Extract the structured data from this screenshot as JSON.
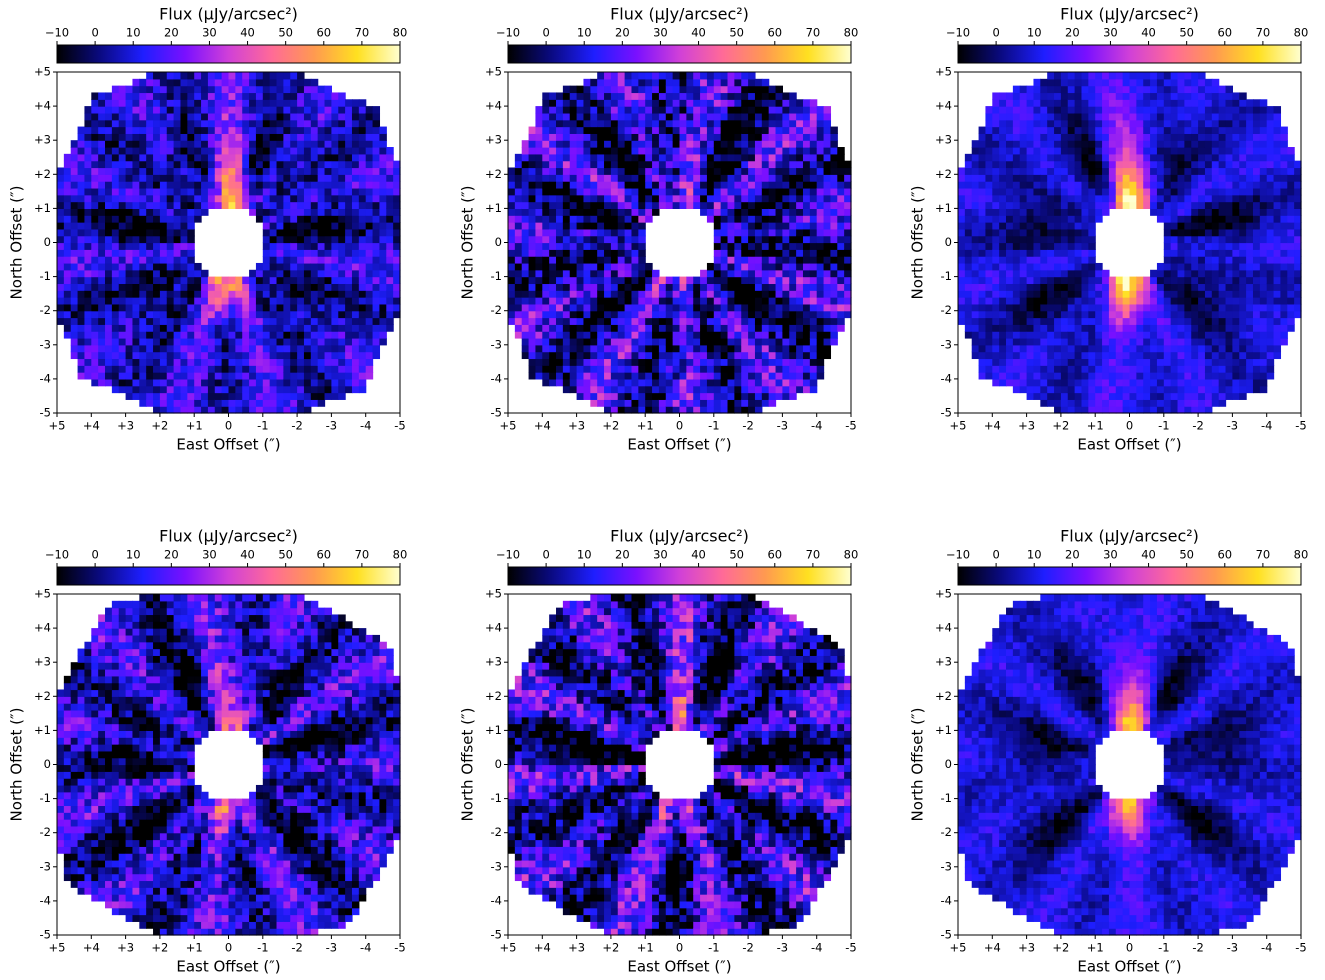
{
  "chart_data": [
    {
      "type": "heatmap",
      "colorbar_label": "Flux (μJy/arcsec²)",
      "clim": [
        -10,
        80
      ],
      "colorbar_ticks": [
        {
          "value": -10,
          "label": "−10"
        },
        0,
        10,
        20,
        30,
        40,
        50,
        60,
        70,
        80
      ],
      "colormap": [
        "#000000",
        "#0a0a80",
        "#1e1eff",
        "#7a10ff",
        "#d040d8",
        "#ff6a98",
        "#ff9a50",
        "#ffe020",
        "#ffffd0"
      ],
      "xlabel": "East Offset (″)",
      "ylabel": "North Offset (″)",
      "xlim": [
        5,
        -5
      ],
      "ylim": [
        -5,
        5
      ],
      "xticks": [
        {
          "value": 5,
          "label": "+5"
        },
        {
          "value": 4,
          "label": "+4"
        },
        {
          "value": 3,
          "label": "+3"
        },
        {
          "value": 2,
          "label": "+2"
        },
        {
          "value": 1,
          "label": "+1"
        },
        0,
        -1,
        -2,
        -3,
        -4,
        -5
      ],
      "yticks": [
        -5,
        -4,
        -3,
        -2,
        -1,
        0,
        {
          "value": 1,
          "label": "+1"
        },
        {
          "value": 2,
          "label": "+2"
        },
        {
          "value": 3,
          "label": "+3"
        },
        {
          "value": 4,
          "label": "+4"
        },
        {
          "value": 5,
          "label": "+5"
        }
      ]
    },
    {
      "type": "heatmap",
      "colorbar_label": "Flux (μJy/arcsec²)",
      "clim": [
        -10,
        80
      ],
      "colorbar_ticks": [
        {
          "value": -10,
          "label": "−10"
        },
        0,
        10,
        20,
        30,
        40,
        50,
        60,
        70,
        80
      ],
      "colormap": [
        "#000000",
        "#0a0a80",
        "#1e1eff",
        "#7a10ff",
        "#d040d8",
        "#ff6a98",
        "#ff9a50",
        "#ffe020",
        "#ffffd0"
      ],
      "xlabel": "East Offset (″)",
      "ylabel": "North Offset (″)",
      "xlim": [
        5,
        -5
      ],
      "ylim": [
        -5,
        5
      ],
      "xticks": [
        {
          "value": 5,
          "label": "+5"
        },
        {
          "value": 4,
          "label": "+4"
        },
        {
          "value": 3,
          "label": "+3"
        },
        {
          "value": 2,
          "label": "+2"
        },
        {
          "value": 1,
          "label": "+1"
        },
        0,
        -1,
        -2,
        -3,
        -4,
        -5
      ],
      "yticks": [
        -5,
        -4,
        -3,
        -2,
        -1,
        0,
        {
          "value": 1,
          "label": "+1"
        },
        {
          "value": 2,
          "label": "+2"
        },
        {
          "value": 3,
          "label": "+3"
        },
        {
          "value": 4,
          "label": "+4"
        },
        {
          "value": 5,
          "label": "+5"
        }
      ]
    },
    {
      "type": "heatmap",
      "colorbar_label": "Flux (μJy/arcsec²)",
      "clim": [
        -10,
        80
      ],
      "colorbar_ticks": [
        {
          "value": -10,
          "label": "−10"
        },
        0,
        10,
        20,
        30,
        40,
        50,
        60,
        70,
        80
      ],
      "colormap": [
        "#000000",
        "#0a0a80",
        "#1e1eff",
        "#7a10ff",
        "#d040d8",
        "#ff6a98",
        "#ff9a50",
        "#ffe020",
        "#ffffd0"
      ],
      "xlabel": "East Offset (″)",
      "ylabel": "North Offset (″)",
      "xlim": [
        5,
        -5
      ],
      "ylim": [
        -5,
        5
      ],
      "xticks": [
        {
          "value": 5,
          "label": "+5"
        },
        {
          "value": 4,
          "label": "+4"
        },
        {
          "value": 3,
          "label": "+3"
        },
        {
          "value": 2,
          "label": "+2"
        },
        {
          "value": 1,
          "label": "+1"
        },
        0,
        -1,
        -2,
        -3,
        -4,
        -5
      ],
      "yticks": [
        -5,
        -4,
        -3,
        -2,
        -1,
        0,
        {
          "value": 1,
          "label": "+1"
        },
        {
          "value": 2,
          "label": "+2"
        },
        {
          "value": 3,
          "label": "+3"
        },
        {
          "value": 4,
          "label": "+4"
        },
        {
          "value": 5,
          "label": "+5"
        }
      ]
    },
    {
      "type": "heatmap",
      "colorbar_label": "Flux (μJy/arcsec²)",
      "clim": [
        -10,
        80
      ],
      "colorbar_ticks": [
        {
          "value": -10,
          "label": "−10"
        },
        0,
        10,
        20,
        30,
        40,
        50,
        60,
        70,
        80
      ],
      "colormap": [
        "#000000",
        "#0a0a80",
        "#1e1eff",
        "#7a10ff",
        "#d040d8",
        "#ff6a98",
        "#ff9a50",
        "#ffe020",
        "#ffffd0"
      ],
      "xlabel": "East Offset (″)",
      "ylabel": "North Offset (″)",
      "xlim": [
        5,
        -5
      ],
      "ylim": [
        -5,
        5
      ],
      "xticks": [
        {
          "value": 5,
          "label": "+5"
        },
        {
          "value": 4,
          "label": "+4"
        },
        {
          "value": 3,
          "label": "+3"
        },
        {
          "value": 2,
          "label": "+2"
        },
        {
          "value": 1,
          "label": "+1"
        },
        0,
        -1,
        -2,
        -3,
        -4,
        -5
      ],
      "yticks": [
        -5,
        -4,
        -3,
        -2,
        -1,
        0,
        {
          "value": 1,
          "label": "+1"
        },
        {
          "value": 2,
          "label": "+2"
        },
        {
          "value": 3,
          "label": "+3"
        },
        {
          "value": 4,
          "label": "+4"
        },
        {
          "value": 5,
          "label": "+5"
        }
      ]
    },
    {
      "type": "heatmap",
      "colorbar_label": "Flux (μJy/arcsec²)",
      "clim": [
        -10,
        80
      ],
      "colorbar_ticks": [
        {
          "value": -10,
          "label": "−10"
        },
        0,
        10,
        20,
        30,
        40,
        50,
        60,
        70,
        80
      ],
      "colormap": [
        "#000000",
        "#0a0a80",
        "#1e1eff",
        "#7a10ff",
        "#d040d8",
        "#ff6a98",
        "#ff9a50",
        "#ffe020",
        "#ffffd0"
      ],
      "xlabel": "East Offset (″)",
      "ylabel": "North Offset (″)",
      "xlim": [
        5,
        -5
      ],
      "ylim": [
        -5,
        5
      ],
      "xticks": [
        {
          "value": 5,
          "label": "+5"
        },
        {
          "value": 4,
          "label": "+4"
        },
        {
          "value": 3,
          "label": "+3"
        },
        {
          "value": 2,
          "label": "+2"
        },
        {
          "value": 1,
          "label": "+1"
        },
        0,
        -1,
        -2,
        -3,
        -4,
        -5
      ],
      "yticks": [
        -5,
        -4,
        -3,
        -2,
        -1,
        0,
        {
          "value": 1,
          "label": "+1"
        },
        {
          "value": 2,
          "label": "+2"
        },
        {
          "value": 3,
          "label": "+3"
        },
        {
          "value": 4,
          "label": "+4"
        },
        {
          "value": 5,
          "label": "+5"
        }
      ]
    },
    {
      "type": "heatmap",
      "colorbar_label": "Flux (μJy/arcsec²)",
      "clim": [
        -10,
        80
      ],
      "colorbar_ticks": [
        {
          "value": -10,
          "label": "−10"
        },
        0,
        10,
        20,
        30,
        40,
        50,
        60,
        70,
        80
      ],
      "colormap": [
        "#000000",
        "#0a0a80",
        "#1e1eff",
        "#7a10ff",
        "#d040d8",
        "#ff6a98",
        "#ff9a50",
        "#ffe020",
        "#ffffd0"
      ],
      "xlabel": "East Offset (″)",
      "ylabel": "North Offset (″)",
      "xlim": [
        5,
        -5
      ],
      "ylim": [
        -5,
        5
      ],
      "xticks": [
        {
          "value": 5,
          "label": "+5"
        },
        {
          "value": 4,
          "label": "+4"
        },
        {
          "value": 3,
          "label": "+3"
        },
        {
          "value": 2,
          "label": "+2"
        },
        {
          "value": 1,
          "label": "+1"
        },
        0,
        -1,
        -2,
        -3,
        -4,
        -5
      ],
      "yticks": [
        -5,
        -4,
        -3,
        -2,
        -1,
        0,
        {
          "value": 1,
          "label": "+1"
        },
        {
          "value": 2,
          "label": "+2"
        },
        {
          "value": 3,
          "label": "+3"
        },
        {
          "value": 4,
          "label": "+4"
        },
        {
          "value": 5,
          "label": "+5"
        }
      ]
    }
  ]
}
